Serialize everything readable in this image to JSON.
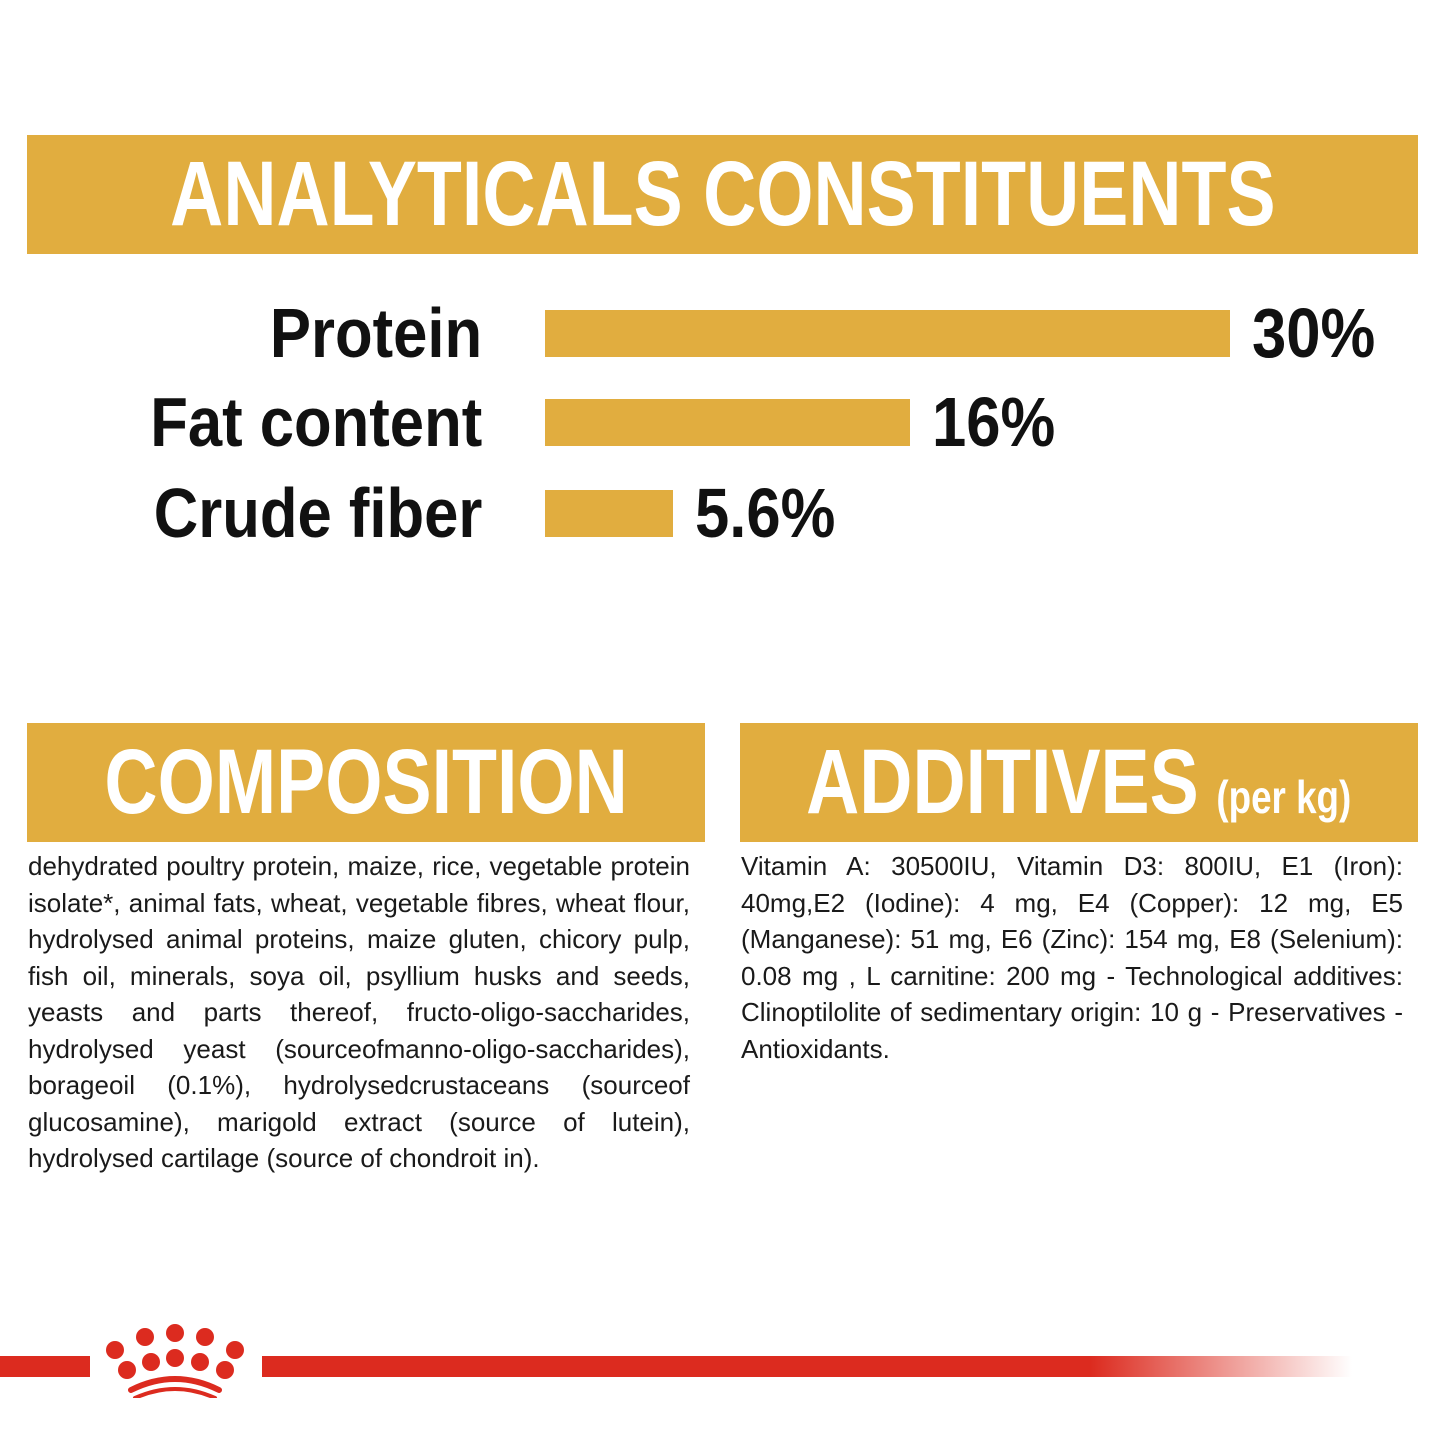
{
  "header": {
    "title": "ANALYTICALS CONSTITUENTS"
  },
  "constituents": [
    {
      "label": "Protein",
      "value_text": "30%",
      "value": 30
    },
    {
      "label": "Fat content",
      "value_text": "16%",
      "value": 16
    },
    {
      "label": "Crude fiber",
      "value_text": "5.6%",
      "value": 5.6
    }
  ],
  "chart_data": {
    "type": "bar",
    "orientation": "horizontal",
    "categories": [
      "Protein",
      "Fat content",
      "Crude fiber"
    ],
    "values": [
      30,
      16,
      5.6
    ],
    "data_labels": [
      "30%",
      "16%",
      "5.6%"
    ],
    "title": "ANALYTICALS CONSTITUENTS",
    "grid": false
  },
  "composition": {
    "title": "COMPOSITION",
    "text": "dehydrated poultry protein, maize, rice, vegetable protein isolate*, animal fats, wheat, vegetable fibres, wheat flour, hydrolysed animal proteins, maize gluten, chicory pulp, fish oil, minerals, soya oil, psyllium husks and seeds, yeasts and parts thereof, fructo-oligo-saccharides, hydrolysed yeast (sourceofmanno-oligo-saccharides), borageoil (0.1%), hydrolysedcrustaceans (sourceof glucosamine), marigold extract (source of lutein), hydrolysed cartilage (source of chondroit in)."
  },
  "additives": {
    "title": "ADDITIVES",
    "subtitle": "(per kg)",
    "text": "Vitamin A: 30500IU, Vitamin D3: 800IU, E1 (Iron): 40mg,E2 (Iodine): 4 mg, E4 (Copper): 12 mg, E5 (Manganese): 51 mg, E6 (Zinc): 154 mg, E8 (Selenium): 0.08 mg , L carnitine: 200 mg - Technological additives: Clinoptilolite of sedimentary origin: 10 g - Preservatives - Antioxidants."
  },
  "colors": {
    "accent": "#e1ad3f",
    "brand_red": "#dc2b1f"
  },
  "logo": {
    "icon": "crown-icon"
  }
}
